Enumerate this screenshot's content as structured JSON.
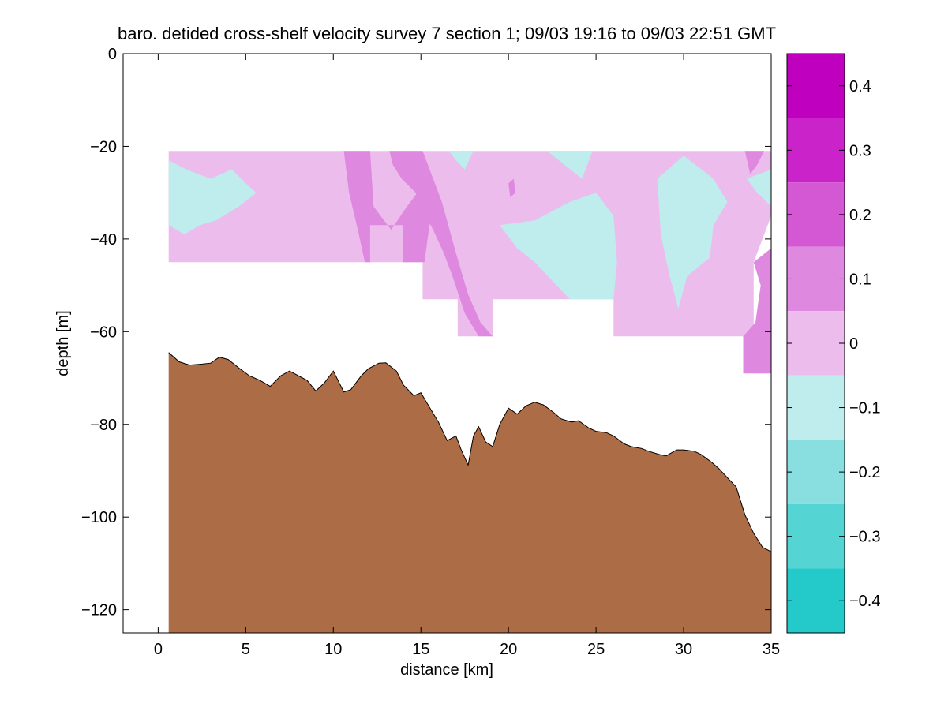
{
  "chart_data": {
    "type": "contour",
    "title": "baro. detided cross-shelf velocity survey 7 section 1; 09/03 19:16 to 09/03 22:51 GMT",
    "xlabel": "distance [km]",
    "ylabel": "depth [m]",
    "xlim": [
      -2,
      35
    ],
    "ylim": [
      -125,
      0
    ],
    "x_ticks": [
      0,
      5,
      10,
      15,
      20,
      25,
      30,
      35
    ],
    "y_ticks": [
      0,
      -20,
      -40,
      -60,
      -80,
      -100,
      -120
    ],
    "x_tick_labels": [
      "0",
      "5",
      "10",
      "15",
      "20",
      "25",
      "30",
      "35"
    ],
    "y_tick_labels": [
      "0",
      "−20",
      "−40",
      "−60",
      "−80",
      "−100",
      "−120"
    ],
    "colorbar": {
      "range": [
        -0.45,
        0.45
      ],
      "tick_values": [
        0.4,
        0.3,
        0.2,
        0.1,
        0,
        -0.1,
        -0.2,
        -0.3,
        -0.4
      ],
      "tick_labels": [
        "0.4",
        "0.3",
        "0.2",
        "0.1",
        "0",
        "−0.1",
        "−0.2",
        "−0.3",
        "−0.4"
      ],
      "levels": [
        {
          "from": 0.35,
          "to": 0.45,
          "color": "#BF00BF"
        },
        {
          "from": 0.25,
          "to": 0.35,
          "color": "#C923C9"
        },
        {
          "from": 0.15,
          "to": 0.25,
          "color": "#D457D4"
        },
        {
          "from": 0.05,
          "to": 0.15,
          "color": "#DF88DF"
        },
        {
          "from": -0.05,
          "to": 0.05,
          "color": "#ECBDEC"
        },
        {
          "from": -0.15,
          "to": -0.05,
          "color": "#BFECEC"
        },
        {
          "from": -0.25,
          "to": -0.15,
          "color": "#89DFDF"
        },
        {
          "from": -0.35,
          "to": -0.25,
          "color": "#55D4D4"
        },
        {
          "from": -0.45,
          "to": -0.35,
          "color": "#24C9C9"
        }
      ]
    },
    "colors": {
      "seabed": "#AB6C46",
      "near_zero_positive": "#ECBDEC",
      "positive_0_1": "#DF88DF",
      "negative_0_1": "#BFECEC"
    },
    "velocity_regions": [
      {
        "label": "near-zero positive (0 to 0.1)",
        "color": "#ECBDEC",
        "points": [
          [
            0.6,
            -21
          ],
          [
            35,
            -21
          ],
          [
            35,
            -35
          ],
          [
            34,
            -45
          ],
          [
            34,
            -61
          ],
          [
            26,
            -61
          ],
          [
            26,
            -53
          ],
          [
            19.1,
            -53
          ],
          [
            19.1,
            -61
          ],
          [
            17.1,
            -61
          ],
          [
            17.1,
            -53
          ],
          [
            15.1,
            -53
          ],
          [
            15.1,
            -45
          ],
          [
            12,
            -45
          ],
          [
            12,
            -45
          ],
          [
            0.6,
            -45
          ]
        ]
      },
      {
        "label": "positive 0.1 band A",
        "color": "#DF88DF",
        "points": [
          [
            10.6,
            -21
          ],
          [
            12.1,
            -21
          ],
          [
            12.3,
            -33
          ],
          [
            13.3,
            -38
          ],
          [
            14.2,
            -33
          ],
          [
            15,
            -29
          ],
          [
            15.6,
            -34
          ],
          [
            15.2,
            -45
          ],
          [
            14,
            -45
          ],
          [
            14,
            -37
          ],
          [
            12.1,
            -37
          ],
          [
            12.1,
            -45
          ],
          [
            11.8,
            -45
          ],
          [
            11.4,
            -38
          ],
          [
            10.9,
            -30
          ]
        ]
      },
      {
        "label": "positive 0.1 band B",
        "color": "#DF88DF",
        "points": [
          [
            13.2,
            -21
          ],
          [
            15.1,
            -21
          ],
          [
            15.5,
            -25
          ],
          [
            16.2,
            -32
          ],
          [
            17,
            -43
          ],
          [
            17.7,
            -52
          ],
          [
            18.4,
            -58
          ],
          [
            19.1,
            -61
          ],
          [
            18.3,
            -61
          ],
          [
            17.5,
            -56
          ],
          [
            16.8,
            -48
          ],
          [
            16.3,
            -43
          ],
          [
            15.7,
            -38
          ],
          [
            15.1,
            -34
          ],
          [
            14.7,
            -30
          ],
          [
            13.9,
            -27
          ],
          [
            13.4,
            -24
          ]
        ]
      },
      {
        "label": "positive 0.1 patch right",
        "color": "#DF88DF",
        "points": [
          [
            34,
            -45
          ],
          [
            35,
            -42
          ],
          [
            35,
            -69
          ],
          [
            33.4,
            -69
          ],
          [
            33.4,
            -61
          ],
          [
            34.1,
            -58
          ],
          [
            34.4,
            -50
          ]
        ]
      },
      {
        "label": "positive 0.1 patch top right",
        "color": "#DF88DF",
        "points": [
          [
            33.5,
            -21
          ],
          [
            34.6,
            -21
          ],
          [
            34.2,
            -24
          ],
          [
            33.8,
            -26
          ]
        ]
      },
      {
        "label": "positive 0.1 patch mid",
        "color": "#DF88DF",
        "points": [
          [
            20,
            -28
          ],
          [
            20.3,
            -27
          ],
          [
            20.4,
            -30
          ],
          [
            20.1,
            -31
          ]
        ]
      },
      {
        "label": "negative 0.1 patch left",
        "color": "#BFECEC",
        "points": [
          [
            0.6,
            -23
          ],
          [
            1.6,
            -25
          ],
          [
            3,
            -27
          ],
          [
            4.2,
            -25
          ],
          [
            5,
            -28
          ],
          [
            5.6,
            -30
          ],
          [
            4.6,
            -33
          ],
          [
            3.3,
            -36
          ],
          [
            2.4,
            -37
          ],
          [
            1.5,
            -39
          ],
          [
            0.6,
            -37
          ]
        ]
      },
      {
        "label": "negative 0.1 patch top mid",
        "color": "#BFECEC",
        "points": [
          [
            16.6,
            -21
          ],
          [
            18,
            -21
          ],
          [
            17.5,
            -25
          ],
          [
            17,
            -23
          ]
        ]
      },
      {
        "label": "negative 0.1 patch top right",
        "color": "#BFECEC",
        "points": [
          [
            22.2,
            -21
          ],
          [
            24.8,
            -21
          ],
          [
            24.2,
            -27
          ],
          [
            23.2,
            -24
          ]
        ]
      },
      {
        "label": "negative 0.1 patch centre",
        "color": "#BFECEC",
        "points": [
          [
            19.5,
            -37
          ],
          [
            21.5,
            -36
          ],
          [
            23.5,
            -32
          ],
          [
            25,
            -30
          ],
          [
            26,
            -35
          ],
          [
            26.2,
            -45
          ],
          [
            26,
            -53
          ],
          [
            23.5,
            -53
          ],
          [
            21.5,
            -45
          ],
          [
            20.5,
            -42
          ]
        ]
      },
      {
        "label": "negative 0.1 patch right",
        "color": "#BFECEC",
        "points": [
          [
            28.5,
            -27
          ],
          [
            30,
            -22
          ],
          [
            31.7,
            -27
          ],
          [
            32.5,
            -32
          ],
          [
            31.7,
            -37
          ],
          [
            31.5,
            -44
          ],
          [
            30.2,
            -48
          ],
          [
            29.7,
            -55
          ],
          [
            29.2,
            -48
          ],
          [
            28.7,
            -39
          ]
        ]
      },
      {
        "label": "negative 0.1 patch far right",
        "color": "#BFECEC",
        "points": [
          [
            33.6,
            -27
          ],
          [
            35,
            -25
          ],
          [
            35,
            -33
          ],
          [
            34.2,
            -30
          ]
        ]
      }
    ],
    "bathymetry": {
      "x_km": [
        0.6,
        1.2,
        1.8,
        2.5,
        3.0,
        3.5,
        4.0,
        4.6,
        5.2,
        5.8,
        6.4,
        7.0,
        7.5,
        8.0,
        8.5,
        9.0,
        9.5,
        10.0,
        10.6,
        11.0,
        11.6,
        12.0,
        12.6,
        13.0,
        13.6,
        14.0,
        14.6,
        15.0,
        15.6,
        16.0,
        16.5,
        17.0,
        17.3,
        17.7,
        18.0,
        18.3,
        18.7,
        19.1,
        19.5,
        20.0,
        20.5,
        21.0,
        21.5,
        22.0,
        22.6,
        23.0,
        23.6,
        24.0,
        24.6,
        25.0,
        25.6,
        26.0,
        26.6,
        27.0,
        27.6,
        28.0,
        28.6,
        29.0,
        29.6,
        30.0,
        30.6,
        31.0,
        31.6,
        32.0,
        32.5,
        33.0,
        33.5,
        34.0,
        34.5,
        35.0
      ],
      "depth_m": [
        -64.5,
        -66.5,
        -67.2,
        -67.0,
        -66.8,
        -65.5,
        -66.0,
        -67.8,
        -69.5,
        -70.5,
        -71.8,
        -69.5,
        -68.5,
        -69.5,
        -70.5,
        -72.8,
        -71.0,
        -68.5,
        -73.0,
        -72.5,
        -69.5,
        -68.0,
        -66.8,
        -66.7,
        -68.5,
        -71.5,
        -73.8,
        -73.2,
        -77.0,
        -79.5,
        -83.5,
        -82.5,
        -85.5,
        -88.8,
        -82.5,
        -80.5,
        -83.8,
        -84.8,
        -80.0,
        -76.5,
        -77.8,
        -76.0,
        -75.2,
        -75.8,
        -77.5,
        -78.8,
        -79.5,
        -79.2,
        -80.8,
        -81.5,
        -81.8,
        -82.5,
        -84.2,
        -84.8,
        -85.2,
        -85.8,
        -86.5,
        -86.8,
        -85.5,
        -85.5,
        -85.8,
        -86.5,
        -88.2,
        -89.5,
        -91.5,
        -93.5,
        -99.5,
        -103.5,
        -106.5,
        -107.5
      ]
    }
  }
}
